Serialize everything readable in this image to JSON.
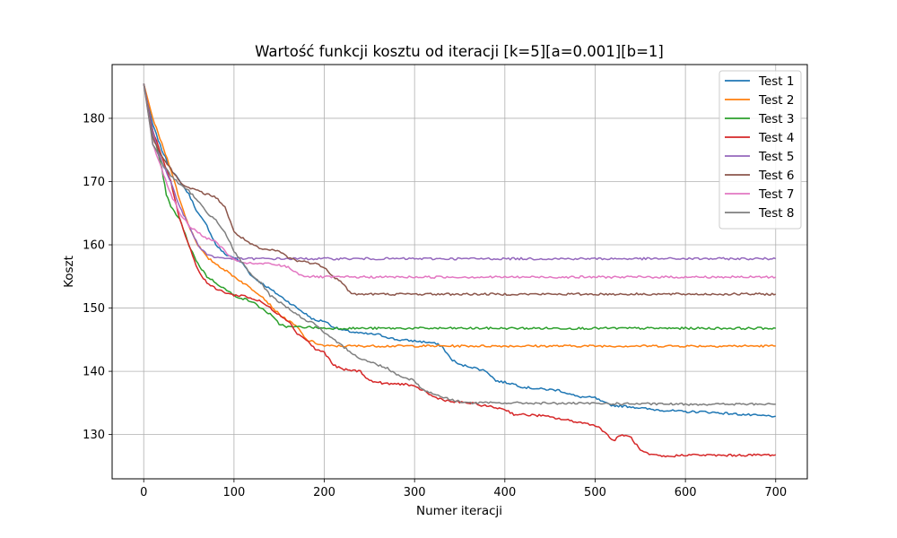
{
  "chart_data": {
    "type": "line",
    "title": "Wartość funkcji kosztu od iteracji [k=5][a=0.001][b=1]",
    "xlabel": "Numer iteracji",
    "ylabel": "Koszt",
    "xlim": [
      -35,
      735
    ],
    "ylim": [
      123,
      188.5
    ],
    "xticks": [
      0,
      100,
      200,
      300,
      400,
      500,
      600,
      700
    ],
    "yticks": [
      130,
      140,
      150,
      160,
      170,
      180
    ],
    "grid": true,
    "legend_position": "top-right",
    "series": [
      {
        "name": "Test 1",
        "color": "#1f77b4",
        "points": [
          [
            0,
            185.5
          ],
          [
            10,
            179
          ],
          [
            20,
            175
          ],
          [
            30,
            172
          ],
          [
            40,
            170
          ],
          [
            50,
            168
          ],
          [
            60,
            165
          ],
          [
            70,
            163
          ],
          [
            80,
            160
          ],
          [
            90,
            158.5
          ],
          [
            100,
            158
          ],
          [
            110,
            157
          ],
          [
            120,
            155
          ],
          [
            130,
            154
          ],
          [
            140,
            153
          ],
          [
            150,
            152
          ],
          [
            160,
            151
          ],
          [
            170,
            150
          ],
          [
            180,
            149
          ],
          [
            190,
            148
          ],
          [
            200,
            148
          ],
          [
            210,
            147
          ],
          [
            220,
            146.5
          ],
          [
            240,
            146
          ],
          [
            260,
            145.8
          ],
          [
            280,
            145
          ],
          [
            300,
            144.8
          ],
          [
            320,
            144.5
          ],
          [
            330,
            144
          ],
          [
            340,
            142
          ],
          [
            350,
            141
          ],
          [
            360,
            140.8
          ],
          [
            380,
            140
          ],
          [
            390,
            138.5
          ],
          [
            410,
            138
          ],
          [
            420,
            137.5
          ],
          [
            440,
            137.2
          ],
          [
            460,
            137
          ],
          [
            470,
            136.5
          ],
          [
            480,
            136
          ],
          [
            500,
            135.8
          ],
          [
            510,
            135
          ],
          [
            520,
            134.6
          ],
          [
            540,
            134.4
          ],
          [
            560,
            134
          ],
          [
            580,
            133.8
          ],
          [
            600,
            133.6
          ],
          [
            620,
            133.6
          ],
          [
            640,
            133.4
          ],
          [
            660,
            133.2
          ],
          [
            680,
            133
          ],
          [
            700,
            132.9
          ]
        ]
      },
      {
        "name": "Test 2",
        "color": "#ff7f0e",
        "points": [
          [
            0,
            185.5
          ],
          [
            10,
            180
          ],
          [
            20,
            176
          ],
          [
            30,
            172
          ],
          [
            40,
            167
          ],
          [
            50,
            163
          ],
          [
            60,
            160
          ],
          [
            70,
            158
          ],
          [
            80,
            157
          ],
          [
            90,
            156
          ],
          [
            100,
            155
          ],
          [
            110,
            154
          ],
          [
            120,
            153
          ],
          [
            130,
            152
          ],
          [
            140,
            150.5
          ],
          [
            150,
            149
          ],
          [
            160,
            148
          ],
          [
            170,
            147
          ],
          [
            180,
            145
          ],
          [
            190,
            144.5
          ],
          [
            200,
            144
          ],
          [
            230,
            144
          ],
          [
            300,
            144
          ],
          [
            400,
            144
          ],
          [
            500,
            144
          ],
          [
            600,
            144
          ],
          [
            700,
            144
          ]
        ]
      },
      {
        "name": "Test 3",
        "color": "#2ca02c",
        "points": [
          [
            0,
            185.5
          ],
          [
            10,
            178
          ],
          [
            20,
            172
          ],
          [
            25,
            168
          ],
          [
            30,
            166
          ],
          [
            40,
            164
          ],
          [
            50,
            160
          ],
          [
            60,
            157
          ],
          [
            70,
            155
          ],
          [
            80,
            154
          ],
          [
            90,
            153
          ],
          [
            100,
            152
          ],
          [
            110,
            151.5
          ],
          [
            120,
            151
          ],
          [
            130,
            150
          ],
          [
            140,
            149
          ],
          [
            150,
            147.5
          ],
          [
            160,
            147
          ],
          [
            180,
            147
          ],
          [
            200,
            146.8
          ],
          [
            300,
            146.8
          ],
          [
            400,
            146.8
          ],
          [
            500,
            146.8
          ],
          [
            600,
            146.8
          ],
          [
            700,
            146.8
          ]
        ]
      },
      {
        "name": "Test 4",
        "color": "#d62728",
        "points": [
          [
            0,
            185.5
          ],
          [
            10,
            178
          ],
          [
            20,
            174
          ],
          [
            30,
            170
          ],
          [
            40,
            164
          ],
          [
            50,
            160
          ],
          [
            60,
            156
          ],
          [
            70,
            154
          ],
          [
            80,
            153
          ],
          [
            90,
            152.5
          ],
          [
            100,
            152
          ],
          [
            110,
            152
          ],
          [
            120,
            151.5
          ],
          [
            130,
            151
          ],
          [
            140,
            150
          ],
          [
            150,
            149
          ],
          [
            160,
            148
          ],
          [
            170,
            146
          ],
          [
            180,
            145
          ],
          [
            190,
            143.5
          ],
          [
            200,
            143
          ],
          [
            210,
            141
          ],
          [
            220,
            140.3
          ],
          [
            240,
            140
          ],
          [
            250,
            138.5
          ],
          [
            270,
            138
          ],
          [
            290,
            138
          ],
          [
            300,
            137.5
          ],
          [
            310,
            137
          ],
          [
            320,
            136
          ],
          [
            340,
            135.2
          ],
          [
            360,
            135
          ],
          [
            380,
            134.5
          ],
          [
            400,
            134
          ],
          [
            410,
            133.2
          ],
          [
            440,
            133
          ],
          [
            460,
            132.5
          ],
          [
            480,
            132
          ],
          [
            500,
            131.5
          ],
          [
            510,
            130.5
          ],
          [
            520,
            129
          ],
          [
            530,
            130
          ],
          [
            540,
            129.5
          ],
          [
            550,
            127.5
          ],
          [
            560,
            126.8
          ],
          [
            580,
            126.5
          ],
          [
            600,
            126.8
          ],
          [
            640,
            126.7
          ],
          [
            700,
            126.8
          ]
        ]
      },
      {
        "name": "Test 5",
        "color": "#9467bd",
        "points": [
          [
            0,
            185.5
          ],
          [
            10,
            178
          ],
          [
            20,
            173
          ],
          [
            30,
            170
          ],
          [
            40,
            166
          ],
          [
            50,
            163
          ],
          [
            60,
            160
          ],
          [
            70,
            158.5
          ],
          [
            80,
            158
          ],
          [
            100,
            157.8
          ],
          [
            200,
            157.8
          ],
          [
            300,
            157.8
          ],
          [
            400,
            157.8
          ],
          [
            500,
            157.8
          ],
          [
            600,
            157.8
          ],
          [
            700,
            157.8
          ]
        ]
      },
      {
        "name": "Test 6",
        "color": "#8c564b",
        "points": [
          [
            0,
            185.5
          ],
          [
            10,
            177
          ],
          [
            20,
            174
          ],
          [
            30,
            172
          ],
          [
            40,
            170
          ],
          [
            50,
            169
          ],
          [
            60,
            168.5
          ],
          [
            70,
            168
          ],
          [
            80,
            167.5
          ],
          [
            90,
            166
          ],
          [
            100,
            162
          ],
          [
            110,
            161
          ],
          [
            120,
            160
          ],
          [
            130,
            159.3
          ],
          [
            150,
            159
          ],
          [
            160,
            158
          ],
          [
            170,
            157.5
          ],
          [
            180,
            157.3
          ],
          [
            190,
            157
          ],
          [
            200,
            156.5
          ],
          [
            210,
            155
          ],
          [
            220,
            154
          ],
          [
            230,
            152.2
          ],
          [
            260,
            152.2
          ],
          [
            300,
            152.2
          ],
          [
            400,
            152.2
          ],
          [
            500,
            152.2
          ],
          [
            600,
            152.2
          ],
          [
            700,
            152.2
          ]
        ]
      },
      {
        "name": "Test 7",
        "color": "#e377c2",
        "points": [
          [
            0,
            185.5
          ],
          [
            10,
            176
          ],
          [
            20,
            172
          ],
          [
            30,
            168
          ],
          [
            40,
            165
          ],
          [
            50,
            163
          ],
          [
            60,
            162
          ],
          [
            70,
            161
          ],
          [
            80,
            160.5
          ],
          [
            90,
            159
          ],
          [
            100,
            157.5
          ],
          [
            120,
            157
          ],
          [
            140,
            157
          ],
          [
            160,
            156.5
          ],
          [
            170,
            155.5
          ],
          [
            180,
            155
          ],
          [
            200,
            154.9
          ],
          [
            300,
            154.9
          ],
          [
            400,
            154.9
          ],
          [
            500,
            154.9
          ],
          [
            600,
            154.9
          ],
          [
            700,
            154.9
          ]
        ]
      },
      {
        "name": "Test 8",
        "color": "#7f7f7f",
        "points": [
          [
            0,
            185.5
          ],
          [
            10,
            176
          ],
          [
            20,
            173
          ],
          [
            30,
            171
          ],
          [
            40,
            169.5
          ],
          [
            50,
            168.5
          ],
          [
            60,
            167
          ],
          [
            70,
            165
          ],
          [
            80,
            164
          ],
          [
            90,
            162
          ],
          [
            100,
            159
          ],
          [
            110,
            157
          ],
          [
            120,
            155
          ],
          [
            130,
            154
          ],
          [
            140,
            152
          ],
          [
            150,
            151
          ],
          [
            160,
            150
          ],
          [
            170,
            149
          ],
          [
            180,
            148
          ],
          [
            190,
            147.5
          ],
          [
            200,
            146
          ],
          [
            210,
            145
          ],
          [
            220,
            144
          ],
          [
            230,
            143
          ],
          [
            240,
            142
          ],
          [
            250,
            141.5
          ],
          [
            260,
            141
          ],
          [
            270,
            140.5
          ],
          [
            280,
            139.5
          ],
          [
            290,
            139
          ],
          [
            300,
            138.5
          ],
          [
            310,
            137
          ],
          [
            320,
            136.5
          ],
          [
            330,
            136
          ],
          [
            340,
            135.5
          ],
          [
            360,
            135
          ],
          [
            380,
            135
          ],
          [
            400,
            135
          ],
          [
            500,
            134.9
          ],
          [
            600,
            134.8
          ],
          [
            700,
            134.8
          ]
        ]
      }
    ]
  }
}
